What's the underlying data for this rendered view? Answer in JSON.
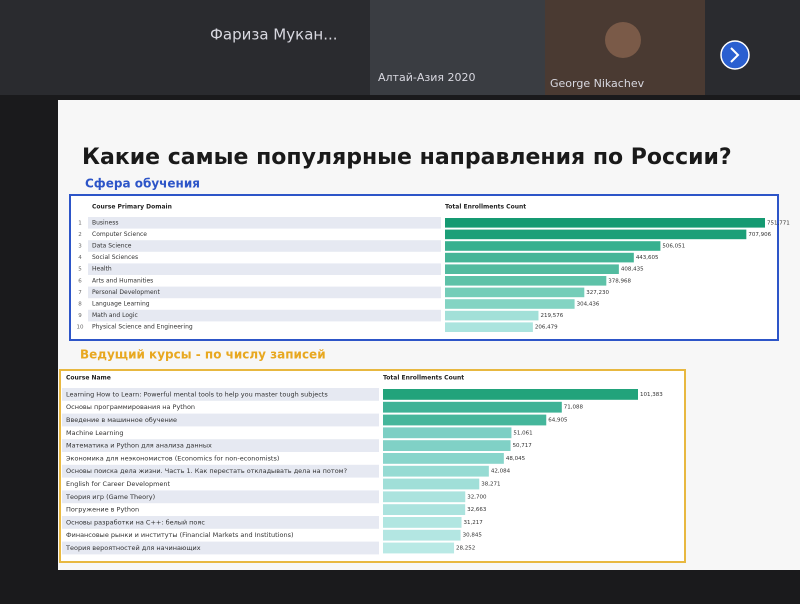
{
  "header": {
    "participants": [
      "Фариза Мукан...",
      "Алтай-Азия 2020",
      "George Nikachev"
    ]
  },
  "slide_title": "Какие самые популярные направления по России?",
  "chart_data": [
    {
      "type": "bar",
      "title": "Сфера обучения",
      "category_header": "Course Primary Domain",
      "value_header": "Total Enrollments Count",
      "row_numbers": [
        1,
        2,
        3,
        4,
        5,
        6,
        7,
        8,
        9,
        10
      ],
      "categories": [
        "Business",
        "Computer Science",
        "Data Science",
        "Social Sciences",
        "Health",
        "Arts and Humanities",
        "Personal Development",
        "Language Learning",
        "Math and Logic",
        "Physical Science and Engineering"
      ],
      "values": [
        751771,
        707906,
        506051,
        443605,
        408435,
        378968,
        327230,
        304436,
        219576,
        206479
      ],
      "value_labels": [
        "751,771",
        "707,906",
        "506,051",
        "443,605",
        "408,435",
        "378,968",
        "327,230",
        "304,436",
        "219,576",
        "206,479"
      ],
      "colors": [
        "#159a72",
        "#1c9f78",
        "#38b08f",
        "#45b597",
        "#52bb9f",
        "#5ec2a8",
        "#74cdb8",
        "#83d4c3",
        "#a2e0d8",
        "#abe4de"
      ]
    },
    {
      "type": "bar",
      "title": "Ведущий курсы - по числу записей",
      "category_header": "Course Name",
      "value_header": "Total Enrollments Count",
      "categories": [
        "Learning How to Learn: Powerful mental tools to help you master tough subjects",
        "Основы программирования на Python",
        "Введение в машинное обучение",
        "Machine Learning",
        "Математика и Python для анализа данных",
        "Экономика для неэкономистов (Economics for non-economists)",
        "Основы поиска дела жизни. Часть 1. Как перестать откладывать дела на потом?",
        "English for Career Development",
        "Теория игр (Game Theory)",
        "Погружение в Python",
        "Основы разработки на C++: белый пояс",
        "Финансовые рынки и институты (Financial Markets and Institutions)",
        "Теория вероятностей для начинающих"
      ],
      "values": [
        101383,
        71088,
        64905,
        51061,
        50717,
        48045,
        42084,
        38271,
        32700,
        32663,
        31217,
        30845,
        28252
      ],
      "value_labels": [
        "101,383",
        "71,088",
        "64,905",
        "51,061",
        "50,717",
        "48,045",
        "42,084",
        "38,271",
        "32,700",
        "32,663",
        "31,217",
        "30,845",
        "28,252"
      ],
      "colors": [
        "#22a37b",
        "#3eb296",
        "#45b69b",
        "#7ccfc4",
        "#80d1c6",
        "#88d5cb",
        "#96dbd3",
        "#a0dfd8",
        "#abe3de",
        "#abe3de",
        "#b1e6e1",
        "#b3e6e2",
        "#b9e9e5"
      ]
    }
  ]
}
